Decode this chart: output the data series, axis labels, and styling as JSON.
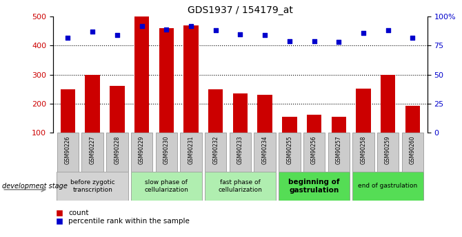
{
  "title": "GDS1937 / 154179_at",
  "samples": [
    "GSM90226",
    "GSM90227",
    "GSM90228",
    "GSM90229",
    "GSM90230",
    "GSM90231",
    "GSM90232",
    "GSM90233",
    "GSM90234",
    "GSM90255",
    "GSM90256",
    "GSM90257",
    "GSM90258",
    "GSM90259",
    "GSM90260"
  ],
  "counts": [
    250,
    300,
    262,
    500,
    460,
    470,
    250,
    235,
    230,
    155,
    163,
    155,
    252,
    300,
    193
  ],
  "percentiles": [
    82,
    87,
    84,
    92,
    89,
    92,
    88,
    85,
    84,
    79,
    79,
    78,
    86,
    88,
    82
  ],
  "ylim_left": [
    100,
    500
  ],
  "ylim_right": [
    0,
    100
  ],
  "yticks_left": [
    100,
    200,
    300,
    400,
    500
  ],
  "yticks_right": [
    0,
    25,
    50,
    75,
    100
  ],
  "bar_color": "#cc0000",
  "dot_color": "#0000cc",
  "grid_color": "#000000",
  "stage_groups": [
    {
      "label": "before zygotic\ntranscription",
      "samples_idx": [
        0,
        1,
        2
      ],
      "color": "#d3d3d3",
      "bold": false
    },
    {
      "label": "slow phase of\ncellularization",
      "samples_idx": [
        3,
        4,
        5
      ],
      "color": "#b0eeb0",
      "bold": false
    },
    {
      "label": "fast phase of\ncellularization",
      "samples_idx": [
        6,
        7,
        8
      ],
      "color": "#b0eeb0",
      "bold": false
    },
    {
      "label": "beginning of\ngastrulation",
      "samples_idx": [
        9,
        10,
        11
      ],
      "color": "#55dd55",
      "bold": true
    },
    {
      "label": "end of gastrulation",
      "samples_idx": [
        12,
        13,
        14
      ],
      "color": "#55dd55",
      "bold": false
    }
  ],
  "legend_labels": [
    "count",
    "percentile rank within the sample"
  ],
  "dev_stage_label": "development stage",
  "right_axis_label_color": "#0000cc",
  "left_axis_label_color": "#cc0000",
  "xtick_box_color": "#cccccc",
  "xtick_border_color": "#888888"
}
